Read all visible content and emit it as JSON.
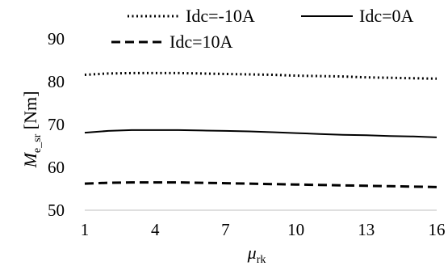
{
  "chart_data": {
    "type": "line",
    "x": [
      1,
      2,
      3,
      4,
      5,
      6,
      7,
      8,
      9,
      10,
      11,
      12,
      13,
      14,
      15,
      16
    ],
    "series": [
      {
        "name": "Idc=-10A",
        "style": "dotted",
        "values": [
          81.6,
          81.9,
          82.0,
          82.0,
          82.0,
          81.9,
          81.8,
          81.7,
          81.6,
          81.4,
          81.3,
          81.2,
          81.0,
          80.9,
          80.8,
          80.7
        ]
      },
      {
        "name": "Idc=0A",
        "style": "solid",
        "values": [
          68.1,
          68.5,
          68.7,
          68.7,
          68.7,
          68.6,
          68.5,
          68.4,
          68.2,
          68.0,
          67.8,
          67.6,
          67.5,
          67.3,
          67.2,
          67.0
        ]
      },
      {
        "name": "Idc=10A",
        "style": "dashed",
        "values": [
          56.2,
          56.4,
          56.5,
          56.5,
          56.5,
          56.4,
          56.3,
          56.2,
          56.1,
          56.0,
          55.9,
          55.8,
          55.7,
          55.6,
          55.5,
          55.4
        ]
      }
    ],
    "xticks": [
      "1",
      "4",
      "7",
      "10",
      "13",
      "16"
    ],
    "yticks": [
      "50",
      "60",
      "70",
      "80",
      "90"
    ],
    "xlim": [
      1,
      16
    ],
    "ylim": [
      50,
      90
    ],
    "xlabel": {
      "main": "μ",
      "sub": "rk"
    },
    "ylabel": {
      "main": "M",
      "sub": "e_sr",
      "unit": " [Nm]"
    },
    "grid": false,
    "legend_position": "top",
    "colors": {
      "line": "#000000",
      "axis": "#bfbfbf"
    }
  }
}
